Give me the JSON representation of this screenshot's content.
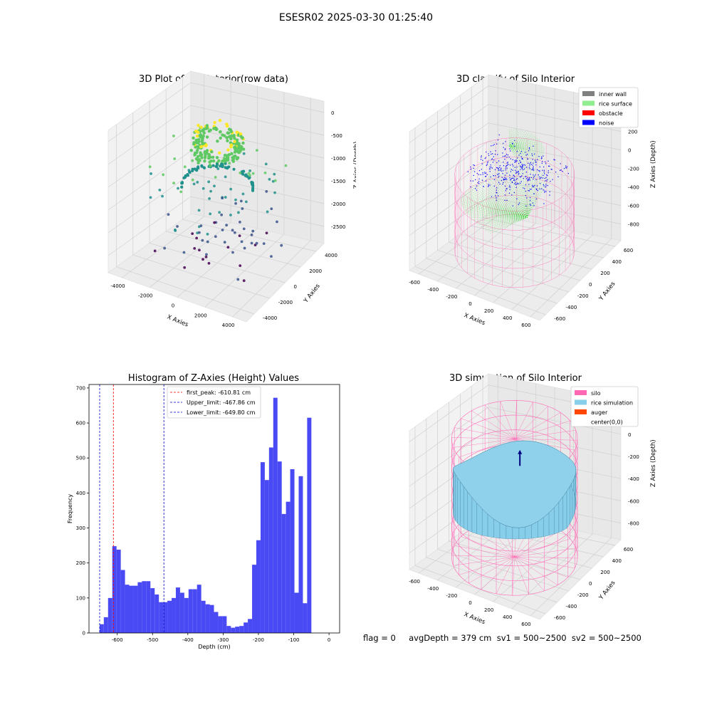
{
  "figure": {
    "suptitle": "ESESR02 2025-03-30 01:25:40",
    "footer": "flag = 0     avgDepth = 379 cm  sv1 = 500~2500  sv2 = 500~2500"
  },
  "chart_data": [
    {
      "type": "scatter",
      "title": "3D Plot of Silo Interior(row data)",
      "xlabel": "X Axies",
      "ylabel": "Y Axies",
      "zlabel": "Z Axies (Depth)",
      "x_ticks": [
        "-4000",
        "-2000",
        "0",
        "2000",
        "4000"
      ],
      "y_ticks": [
        "-4000",
        "-2000",
        "0",
        "2000",
        "4000"
      ],
      "z_ticks": [
        "0",
        "-500",
        "-1000",
        "-1500",
        "-2000",
        "-2500"
      ],
      "colormap": [
        "#440154",
        "#3b528b",
        "#21918c",
        "#5ec962",
        "#fde725"
      ],
      "grid": true
    },
    {
      "type": "scatter",
      "title": "3D classify of Silo Interior",
      "xlabel": "X Axies",
      "ylabel": "Y Axies",
      "zlabel": "Z Axies (Depth)",
      "x_ticks": [
        "-600",
        "-400",
        "-200",
        "0",
        "200",
        "400",
        "600"
      ],
      "y_ticks": [
        "-600",
        "-400",
        "-200",
        "0",
        "200",
        "400",
        "600"
      ],
      "z_ticks": [
        "400",
        "200",
        "0",
        "-200",
        "-400",
        "-600",
        "-800"
      ],
      "legend": [
        {
          "label": "inner wall",
          "color": "#808080"
        },
        {
          "label": "rice surface",
          "color": "#90ee90"
        },
        {
          "label": "obstacle",
          "color": "#ff0000"
        },
        {
          "label": "noise",
          "color": "#0000ff"
        }
      ],
      "legend_position": "top-right",
      "grid": true
    },
    {
      "type": "histogram",
      "title": "Histogram of Z-Axies (Height) Values",
      "xlabel": "Depth (cm)",
      "ylabel": "Frequency",
      "xlim": [
        -680,
        30
      ],
      "ylim": [
        0,
        710
      ],
      "x_ticks": [
        -600,
        -500,
        -400,
        -300,
        -200,
        -100,
        0
      ],
      "y_ticks": [
        0,
        100,
        200,
        300,
        400,
        500,
        600,
        700
      ],
      "bin_width": 12,
      "bin_start": -650,
      "values": [
        25,
        45,
        100,
        248,
        238,
        180,
        138,
        135,
        135,
        145,
        148,
        148,
        128,
        110,
        88,
        88,
        92,
        100,
        130,
        115,
        100,
        125,
        125,
        138,
        92,
        82,
        80,
        60,
        48,
        48,
        20,
        15,
        18,
        20,
        30,
        40,
        195,
        265,
        488,
        437,
        530,
        672,
        490,
        340,
        375,
        468,
        115,
        448,
        85,
        615
      ],
      "bar_color": "#4a4af5",
      "vlines": [
        {
          "label": "first_peak: -610.81 cm",
          "x": -610.81,
          "color": "#ff0000"
        },
        {
          "label": "Upper_limit: -467.86 cm",
          "x": -467.86,
          "color": "#0000cc"
        },
        {
          "label": "Lower_limit: -649.80 cm",
          "x": -649.8,
          "color": "#0000cc"
        }
      ],
      "legend_position": "top-center"
    },
    {
      "type": "surface",
      "title": "3D simulation of Silo Interior",
      "xlabel": "X Axies",
      "ylabel": "Y Axies",
      "zlabel": "Z Axies (Depth)",
      "x_ticks": [
        "-600",
        "-400",
        "-200",
        "0",
        "200",
        "400",
        "600"
      ],
      "y_ticks": [
        "-600",
        "-400",
        "-200",
        "0",
        "200",
        "400",
        "600"
      ],
      "z_ticks": [
        "200",
        "0",
        "-200",
        "-400",
        "-600",
        "-800"
      ],
      "legend": [
        {
          "label": "silo",
          "color": "#ff69b4"
        },
        {
          "label": "rice simulation",
          "color": "#87ceeb"
        },
        {
          "label": "auger",
          "color": "#ff4500"
        },
        {
          "label": "center(0,0)",
          "color": ""
        }
      ],
      "legend_position": "top-right",
      "grid": true
    }
  ]
}
